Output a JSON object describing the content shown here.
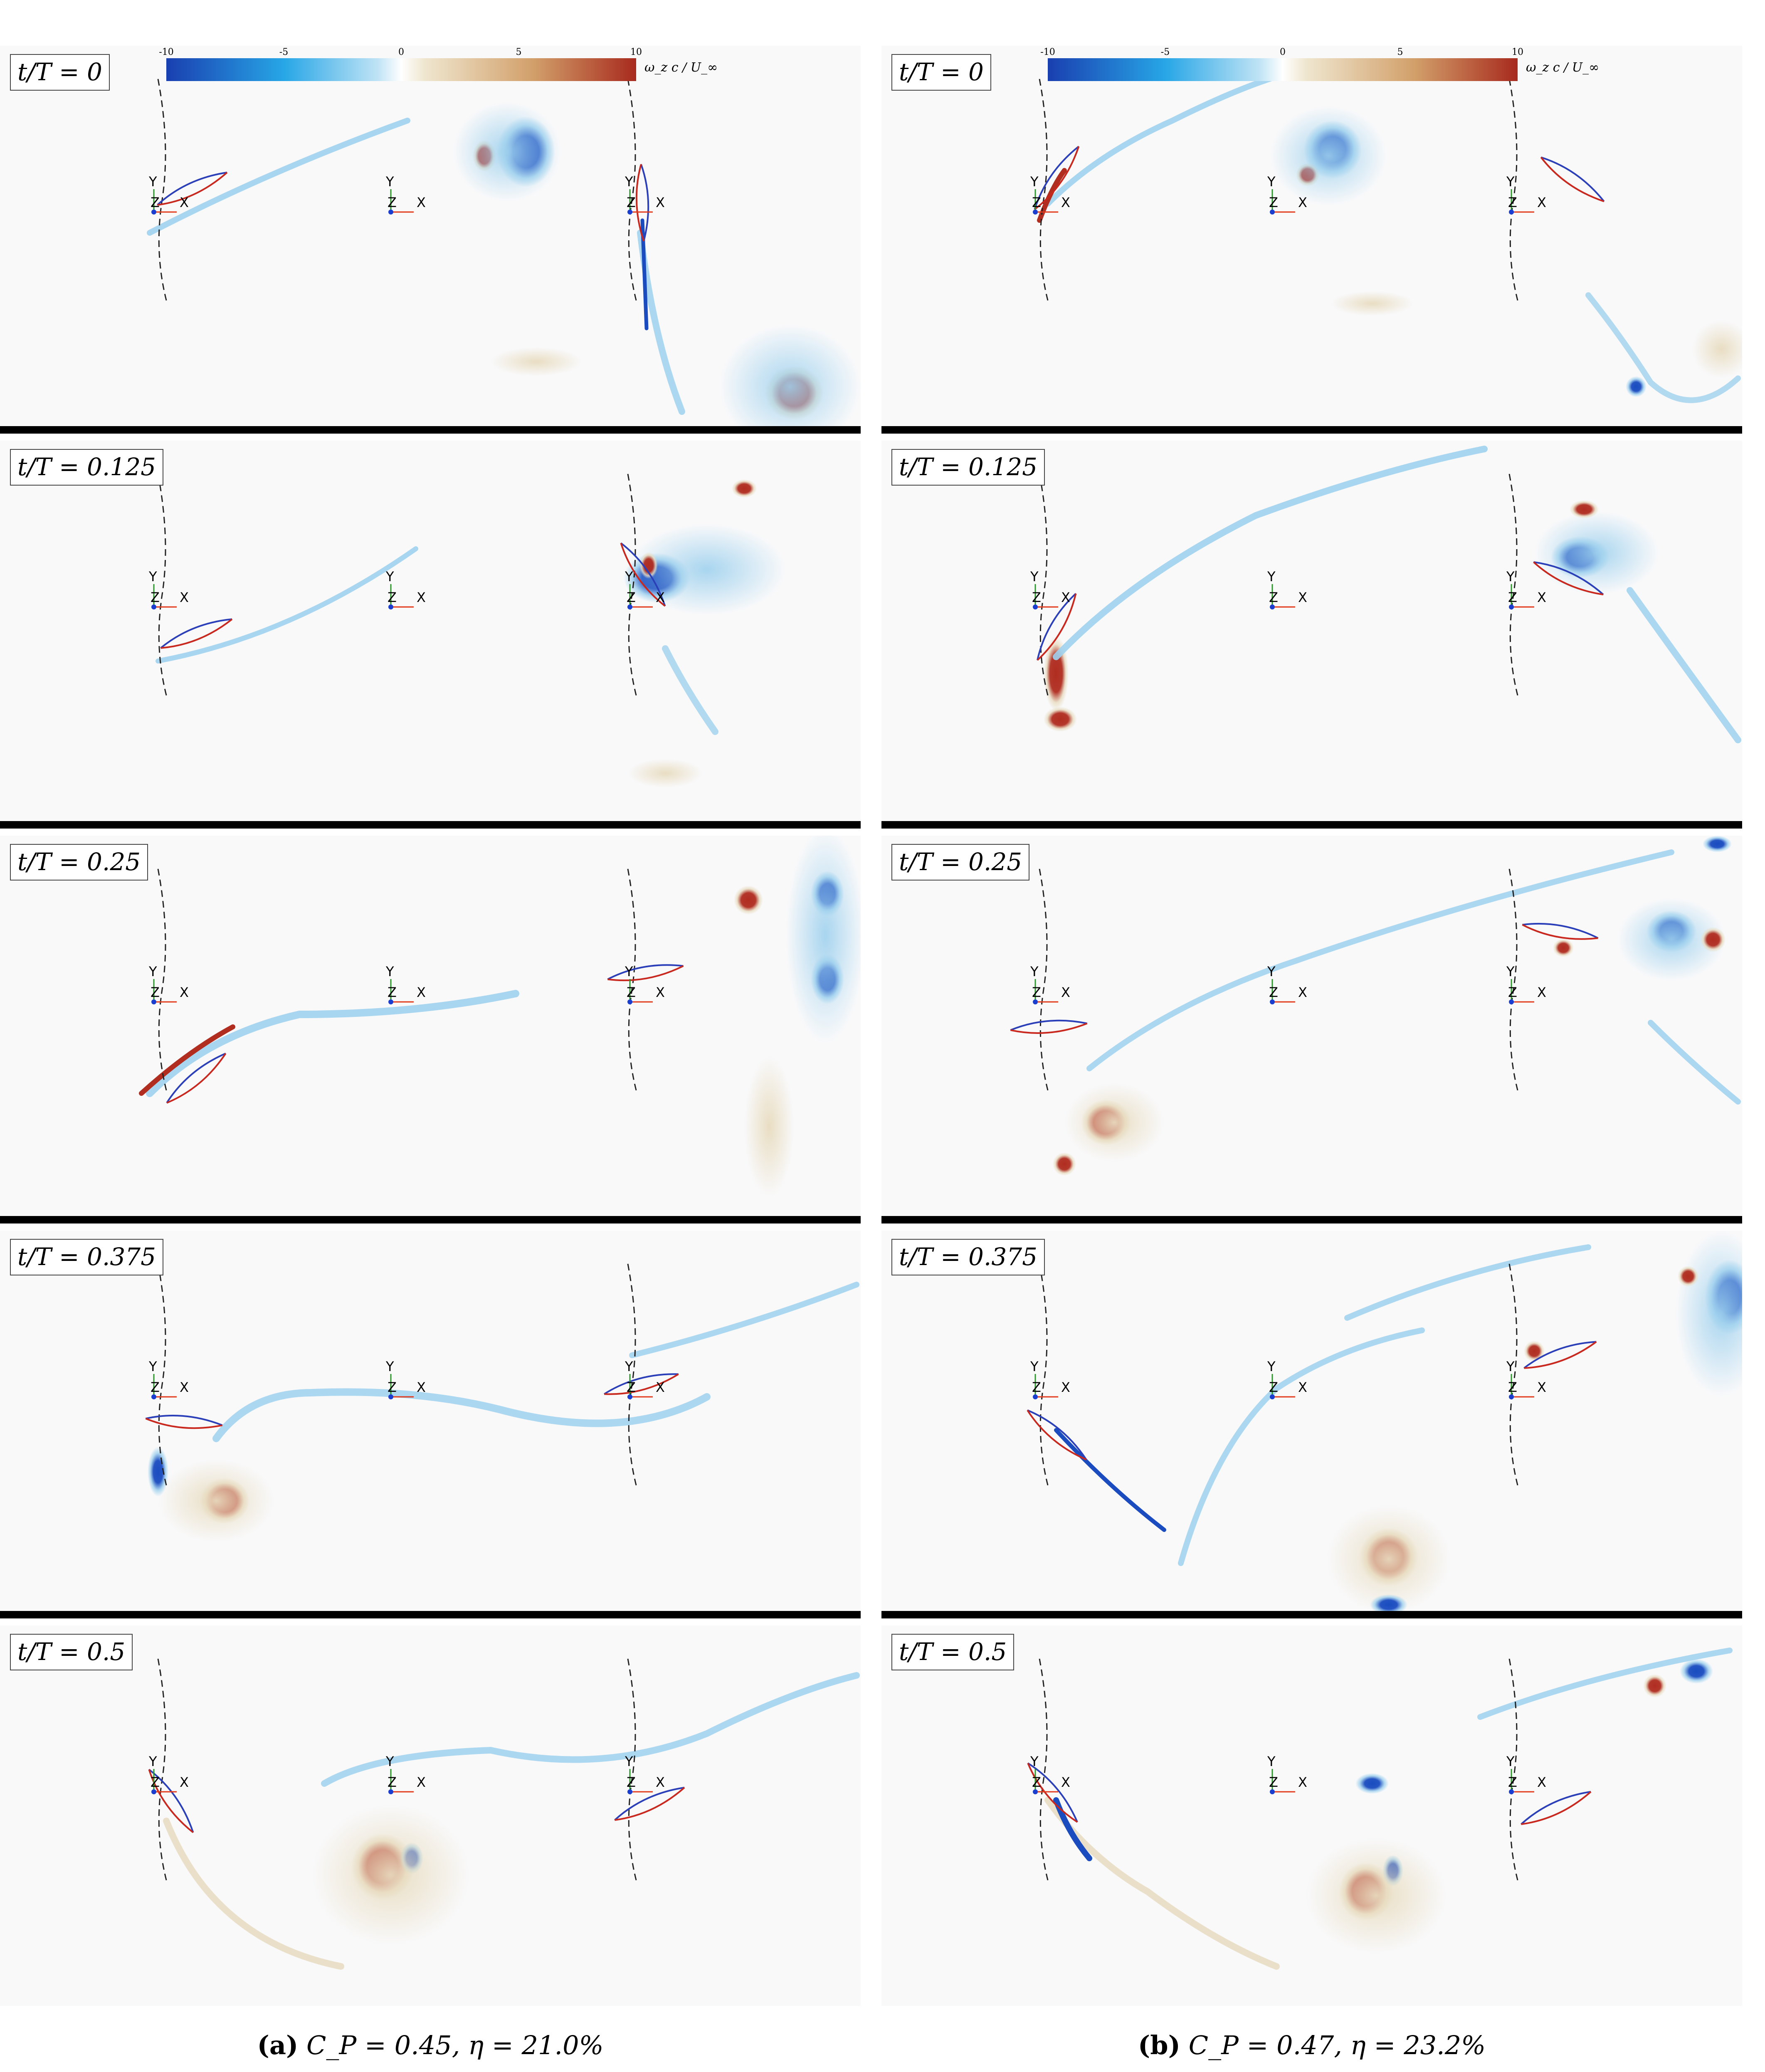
{
  "columns": [
    {
      "id": "a",
      "caption_letter": "(a)",
      "caption_text": "C_P = 0.45, η = 21.0%",
      "panels": [
        {
          "time_label": "t/T = 0"
        },
        {
          "time_label": "t/T = 0.125"
        },
        {
          "time_label": "t/T = 0.25"
        },
        {
          "time_label": "t/T = 0.375"
        },
        {
          "time_label": "t/T = 0.5"
        }
      ]
    },
    {
      "id": "b",
      "caption_letter": "(b)",
      "caption_text": "C_P = 0.47, η = 23.2%",
      "panels": [
        {
          "time_label": "t/T = 0"
        },
        {
          "time_label": "t/T = 0.125"
        },
        {
          "time_label": "t/T = 0.25"
        },
        {
          "time_label": "t/T = 0.375"
        },
        {
          "time_label": "t/T = 0.5"
        }
      ]
    }
  ],
  "colorbar": {
    "ticks": [
      "-10",
      "-5",
      "0",
      "5",
      "10"
    ],
    "unit_label": "ω_z c / U_∞",
    "colors": {
      "negative_strong": "#1a3fb0",
      "negative_light": "#bfe3f5",
      "zero": "#ffffff",
      "positive_light": "#efe6cf",
      "positive_strong": "#a82a1e"
    }
  },
  "axis_triad": {
    "x_label": "X",
    "y_label": "Y",
    "z_label": "Z"
  },
  "colors": {
    "vortex_negative": "#1a4cc0",
    "vortex_negative_light": "#9fd1ee",
    "vortex_positive": "#b02d20",
    "vortex_positive_light": "#e8dcc0",
    "foil_upper": "#2a3fb8",
    "foil_lower": "#c8281e",
    "axis_x": "#e23a1a",
    "axis_y": "#2a9a2a",
    "axis_z": "#1a3fd0",
    "separator": "#000000"
  }
}
